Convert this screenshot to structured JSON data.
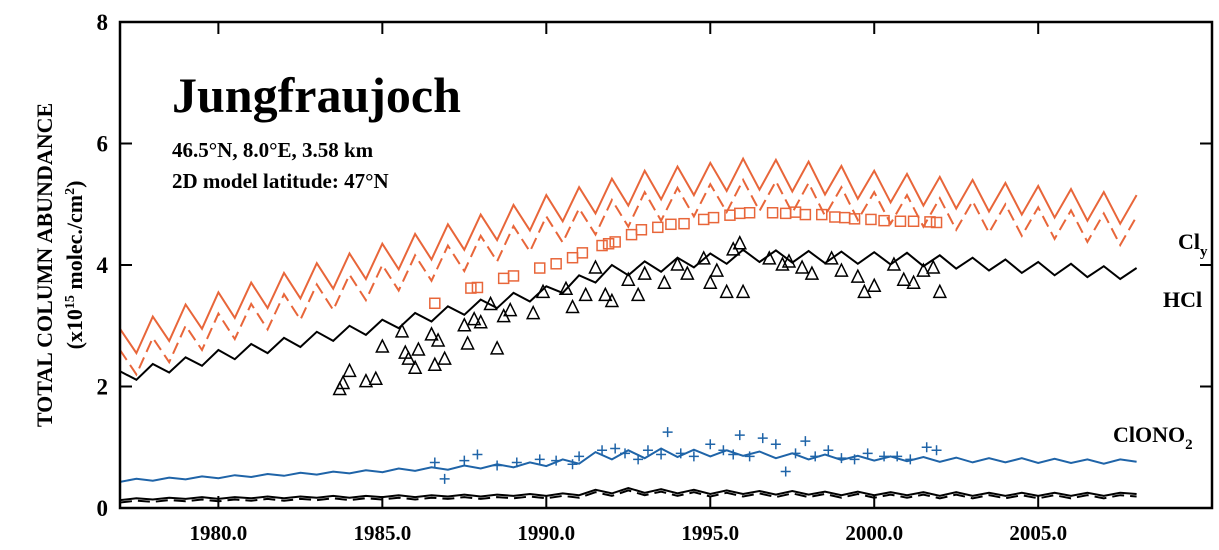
{
  "chart_data": {
    "type": "line",
    "title": "Jungfraujoch",
    "subtitle": [
      "46.5°N, 8.0°E, 3.58 km",
      "2D model latitude: 47°N"
    ],
    "y_label": {
      "line1": "TOTAL COLUMN ABUNDANCE",
      "pre": "(x10",
      "exp": "15",
      "mid": " molec./cm",
      "exp2": "2",
      "post": ")"
    },
    "annotations": [
      {
        "text": "Cl",
        "sub": "y"
      },
      {
        "text": "HCl",
        "sub": ""
      },
      {
        "text": "ClONO",
        "sub": "2"
      }
    ],
    "xlim": [
      1977,
      2010.3
    ],
    "ylim": [
      0,
      8
    ],
    "xticks": [
      {
        "value": 1980,
        "label": "1980.0"
      },
      {
        "value": 1985,
        "label": "1985.0"
      },
      {
        "value": 1990,
        "label": "1990.0"
      },
      {
        "value": 1995,
        "label": "1995.0"
      },
      {
        "value": 2000,
        "label": "2000.0"
      },
      {
        "value": 2005,
        "label": "2005.0"
      }
    ],
    "yticks": [
      0,
      2,
      4,
      6,
      8
    ],
    "x": [
      1977,
      1977.5,
      1978,
      1978.5,
      1979,
      1979.5,
      1980,
      1980.5,
      1981,
      1981.5,
      1982,
      1982.5,
      1983,
      1983.5,
      1984,
      1984.5,
      1985,
      1985.5,
      1986,
      1986.5,
      1987,
      1987.5,
      1988,
      1988.5,
      1989,
      1989.5,
      1990,
      1990.5,
      1991,
      1991.5,
      1992,
      1992.5,
      1993,
      1993.5,
      1994,
      1994.5,
      1995,
      1995.5,
      1996,
      1996.5,
      1997,
      1997.5,
      1998,
      1998.5,
      1999,
      1999.5,
      2000,
      2000.5,
      2001,
      2001.5,
      2002,
      2002.5,
      2003,
      2003.5,
      2004,
      2004.5,
      2005,
      2005.5,
      2006,
      2006.5,
      2007,
      2007.5,
      2008
    ],
    "series": [
      {
        "type": "line",
        "color": "#e8663a",
        "dash": false,
        "values": [
          2.95,
          2.55,
          3.15,
          2.75,
          3.35,
          2.95,
          3.55,
          3.13,
          3.71,
          3.29,
          3.87,
          3.45,
          4.03,
          3.61,
          4.19,
          3.77,
          4.35,
          3.93,
          4.51,
          4.09,
          4.67,
          4.25,
          4.83,
          4.41,
          4.99,
          4.57,
          5.15,
          4.72,
          5.28,
          4.85,
          5.42,
          4.98,
          5.55,
          5.08,
          5.62,
          5.15,
          5.68,
          5.22,
          5.75,
          5.24,
          5.73,
          5.21,
          5.7,
          5.16,
          5.63,
          5.09,
          5.55,
          5.03,
          5.5,
          4.98,
          5.45,
          4.93,
          5.4,
          4.88,
          5.35,
          4.83,
          5.3,
          4.78,
          5.25,
          4.73,
          5.2,
          4.68,
          5.15
        ]
      },
      {
        "type": "line",
        "color": "#e8663a",
        "dash": true,
        "values": [
          2.6,
          2.2,
          2.8,
          2.4,
          3.0,
          2.6,
          3.2,
          2.78,
          3.36,
          2.94,
          3.52,
          3.1,
          3.68,
          3.26,
          3.84,
          3.42,
          4.0,
          3.58,
          4.16,
          3.74,
          4.32,
          3.9,
          4.48,
          4.06,
          4.64,
          4.22,
          4.8,
          4.37,
          4.93,
          4.5,
          5.07,
          4.63,
          5.2,
          4.73,
          5.27,
          4.8,
          5.33,
          4.87,
          5.4,
          4.89,
          5.38,
          4.86,
          5.35,
          4.81,
          5.28,
          4.74,
          5.2,
          4.68,
          5.15,
          4.63,
          5.1,
          4.58,
          5.05,
          4.53,
          5.0,
          4.48,
          4.95,
          4.43,
          4.9,
          4.38,
          4.85,
          4.33,
          4.8
        ]
      },
      {
        "type": "line",
        "color": "#000000",
        "dash": false,
        "values": [
          2.25,
          2.11,
          2.37,
          2.23,
          2.48,
          2.34,
          2.6,
          2.45,
          2.7,
          2.55,
          2.8,
          2.65,
          2.9,
          2.75,
          3.0,
          2.85,
          3.1,
          2.96,
          3.21,
          3.07,
          3.32,
          3.18,
          3.43,
          3.29,
          3.54,
          3.4,
          3.65,
          3.54,
          3.83,
          3.71,
          4.0,
          3.83,
          4.06,
          3.89,
          4.12,
          3.96,
          4.19,
          4.02,
          4.25,
          4.05,
          4.24,
          4.04,
          4.23,
          4.03,
          4.22,
          4.02,
          4.21,
          4.01,
          4.2,
          3.98,
          4.16,
          3.94,
          4.12,
          3.91,
          4.09,
          3.87,
          4.05,
          3.83,
          4.02,
          3.8,
          3.98,
          3.77,
          3.95
        ]
      },
      {
        "type": "line",
        "color": "#1f64a8",
        "dash": false,
        "values": [
          0.43,
          0.48,
          0.45,
          0.5,
          0.47,
          0.52,
          0.49,
          0.54,
          0.51,
          0.56,
          0.53,
          0.58,
          0.55,
          0.6,
          0.57,
          0.62,
          0.59,
          0.65,
          0.61,
          0.67,
          0.63,
          0.7,
          0.65,
          0.72,
          0.67,
          0.75,
          0.69,
          0.8,
          0.73,
          0.92,
          0.8,
          0.95,
          0.82,
          0.98,
          0.84,
          0.96,
          0.85,
          0.95,
          0.86,
          0.93,
          0.82,
          0.9,
          0.8,
          0.88,
          0.79,
          0.86,
          0.78,
          0.85,
          0.77,
          0.84,
          0.76,
          0.83,
          0.75,
          0.82,
          0.75,
          0.82,
          0.74,
          0.81,
          0.74,
          0.8,
          0.73,
          0.8,
          0.76
        ]
      },
      {
        "type": "line",
        "color": "#000000",
        "dash": false,
        "values": [
          0.13,
          0.16,
          0.14,
          0.17,
          0.15,
          0.18,
          0.15,
          0.18,
          0.16,
          0.19,
          0.16,
          0.19,
          0.17,
          0.2,
          0.17,
          0.2,
          0.18,
          0.21,
          0.18,
          0.21,
          0.19,
          0.22,
          0.19,
          0.22,
          0.2,
          0.23,
          0.2,
          0.24,
          0.21,
          0.3,
          0.24,
          0.33,
          0.25,
          0.31,
          0.24,
          0.3,
          0.23,
          0.29,
          0.23,
          0.28,
          0.22,
          0.28,
          0.22,
          0.27,
          0.21,
          0.27,
          0.21,
          0.26,
          0.21,
          0.26,
          0.2,
          0.26,
          0.2,
          0.25,
          0.2,
          0.25,
          0.2,
          0.25,
          0.2,
          0.25,
          0.2,
          0.25,
          0.23
        ]
      },
      {
        "type": "line",
        "color": "#000000",
        "dash": true,
        "values": [
          0.09,
          0.12,
          0.1,
          0.13,
          0.11,
          0.14,
          0.11,
          0.14,
          0.12,
          0.15,
          0.12,
          0.15,
          0.13,
          0.16,
          0.13,
          0.16,
          0.14,
          0.17,
          0.14,
          0.17,
          0.15,
          0.18,
          0.15,
          0.18,
          0.16,
          0.19,
          0.16,
          0.2,
          0.17,
          0.26,
          0.2,
          0.29,
          0.21,
          0.27,
          0.2,
          0.26,
          0.19,
          0.25,
          0.19,
          0.24,
          0.18,
          0.24,
          0.18,
          0.23,
          0.17,
          0.23,
          0.17,
          0.22,
          0.17,
          0.22,
          0.16,
          0.22,
          0.16,
          0.21,
          0.16,
          0.21,
          0.16,
          0.21,
          0.16,
          0.21,
          0.16,
          0.21,
          0.19
        ]
      },
      {
        "type": "scatter",
        "marker": "square",
        "color": "#e8663a",
        "x": [
          1986.6,
          1987.7,
          1987.9,
          1988.7,
          1989.0,
          1989.8,
          1990.3,
          1990.8,
          1991.1,
          1991.7,
          1991.9,
          1992.1,
          1992.6,
          1992.9,
          1993.4,
          1993.8,
          1994.2,
          1994.8,
          1995.1,
          1995.6,
          1995.9,
          1996.2,
          1996.9,
          1997.3,
          1997.6,
          1997.9,
          1998.4,
          1998.8,
          1999.1,
          1999.4,
          1999.9,
          2000.3,
          2000.8,
          2001.2,
          2001.7,
          2001.9
        ],
        "values": [
          3.37,
          3.62,
          3.63,
          3.78,
          3.82,
          3.95,
          4.02,
          4.12,
          4.2,
          4.32,
          4.35,
          4.38,
          4.5,
          4.58,
          4.62,
          4.67,
          4.68,
          4.75,
          4.78,
          4.82,
          4.85,
          4.86,
          4.86,
          4.85,
          4.87,
          4.83,
          4.83,
          4.79,
          4.78,
          4.76,
          4.75,
          4.73,
          4.72,
          4.72,
          4.71,
          4.7
        ]
      },
      {
        "type": "scatter",
        "marker": "triangle",
        "color": "#000000",
        "x": [
          1983.7,
          1983.8,
          1984.0,
          1984.5,
          1984.8,
          1985.0,
          1985.6,
          1985.7,
          1985.8,
          1986.0,
          1986.1,
          1986.5,
          1986.6,
          1986.7,
          1986.9,
          1987.5,
          1987.6,
          1987.8,
          1988.0,
          1988.3,
          1988.5,
          1988.7,
          1988.9,
          1989.6,
          1989.9,
          1990.6,
          1990.8,
          1991.2,
          1991.5,
          1991.8,
          1992.0,
          1992.5,
          1992.8,
          1993.0,
          1993.6,
          1994.0,
          1994.3,
          1994.8,
          1995.0,
          1995.2,
          1995.5,
          1995.7,
          1995.9,
          1996.0,
          1996.8,
          1997.2,
          1997.4,
          1997.8,
          1998.1,
          1998.7,
          1999.0,
          1999.5,
          1999.7,
          2000.0,
          2000.6,
          2000.9,
          2001.2,
          2001.5,
          2001.8,
          2002.0
        ],
        "values": [
          1.95,
          2.05,
          2.25,
          2.08,
          2.12,
          2.65,
          2.9,
          2.55,
          2.45,
          2.3,
          2.6,
          2.85,
          2.35,
          2.75,
          2.45,
          3.0,
          2.7,
          3.1,
          3.05,
          3.35,
          2.62,
          3.15,
          3.25,
          3.2,
          3.55,
          3.6,
          3.3,
          3.5,
          3.95,
          3.5,
          3.4,
          3.75,
          3.5,
          3.85,
          3.7,
          4.0,
          3.85,
          4.1,
          3.7,
          3.9,
          3.55,
          4.25,
          4.35,
          3.55,
          4.1,
          4.0,
          4.05,
          3.95,
          3.85,
          4.1,
          3.9,
          3.8,
          3.55,
          3.65,
          4.0,
          3.75,
          3.7,
          3.9,
          3.95,
          3.55
        ]
      },
      {
        "type": "scatter",
        "marker": "plus",
        "color": "#1f64a8",
        "x": [
          1986.6,
          1986.9,
          1987.5,
          1987.9,
          1988.5,
          1989.1,
          1989.8,
          1990.3,
          1990.8,
          1991.0,
          1991.7,
          1992.1,
          1992.4,
          1992.8,
          1993.1,
          1993.5,
          1993.7,
          1994.1,
          1994.5,
          1995.0,
          1995.4,
          1995.7,
          1995.9,
          1996.2,
          1996.6,
          1997.0,
          1997.3,
          1997.6,
          1997.9,
          1998.2,
          1998.6,
          1999.0,
          1999.4,
          1999.8,
          2000.3,
          2000.7,
          2001.1,
          2001.6,
          2001.9
        ],
        "values": [
          0.75,
          0.48,
          0.78,
          0.88,
          0.7,
          0.75,
          0.8,
          0.78,
          0.72,
          0.85,
          0.95,
          0.98,
          0.9,
          0.8,
          0.95,
          0.88,
          1.25,
          0.9,
          0.85,
          1.05,
          0.95,
          0.88,
          1.2,
          0.85,
          1.15,
          1.05,
          0.6,
          0.9,
          1.1,
          0.85,
          0.95,
          0.82,
          0.8,
          0.9,
          0.85,
          0.85,
          0.8,
          1.0,
          0.95
        ]
      }
    ]
  }
}
